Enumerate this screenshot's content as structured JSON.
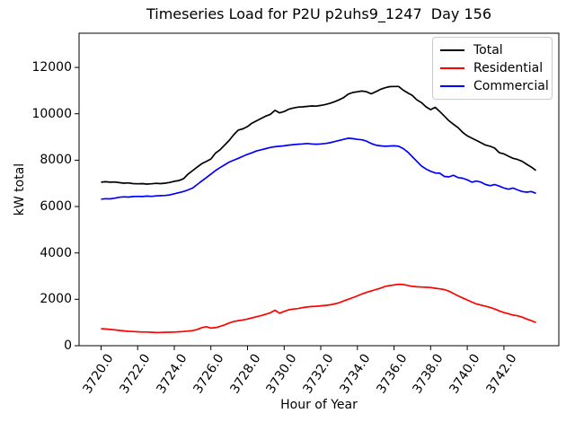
{
  "chart_data": {
    "type": "line",
    "title": "Timeseries Load for P2U p2uhs9_1247  Day 156",
    "xlabel": "Hour of Year",
    "ylabel": "kW total",
    "xlim": [
      3718.8,
      3745.0
    ],
    "ylim": [
      0,
      13475
    ],
    "grid": false,
    "legend_position": "upper right",
    "xticks": [
      3720,
      3722,
      3724,
      3726,
      3728,
      3730,
      3732,
      3734,
      3736,
      3738,
      3740,
      3742
    ],
    "xtick_labels": [
      "3720.0",
      "3722.0",
      "3724.0",
      "3726.0",
      "3728.0",
      "3730.0",
      "3732.0",
      "3734.0",
      "3736.0",
      "3738.0",
      "3740.0",
      "3742.0"
    ],
    "yticks": [
      0,
      2000,
      4000,
      6000,
      8000,
      10000,
      12000
    ],
    "ytick_labels": [
      "0",
      "2000",
      "4000",
      "6000",
      "8000",
      "10000",
      "12000"
    ],
    "x_start": 3720,
    "x_step": 0.25,
    "series": [
      {
        "name": "Total",
        "color": "#000000",
        "values": [
          7050,
          7070,
          7050,
          7060,
          7030,
          7010,
          7020,
          6990,
          6980,
          6990,
          6970,
          6980,
          7000,
          6990,
          7010,
          7040,
          7090,
          7120,
          7200,
          7400,
          7550,
          7700,
          7850,
          7950,
          8050,
          8300,
          8450,
          8650,
          8850,
          9100,
          9300,
          9350,
          9450,
          9600,
          9700,
          9800,
          9900,
          9980,
          10150,
          10040,
          10100,
          10200,
          10250,
          10290,
          10300,
          10320,
          10340,
          10330,
          10360,
          10400,
          10450,
          10520,
          10600,
          10700,
          10850,
          10920,
          10950,
          10980,
          10950,
          10860,
          10950,
          11050,
          11120,
          11170,
          11180,
          11180,
          11020,
          10900,
          10790,
          10600,
          10480,
          10300,
          10180,
          10280,
          10100,
          9900,
          9700,
          9550,
          9400,
          9200,
          9050,
          8950,
          8850,
          8750,
          8650,
          8600,
          8520,
          8320,
          8270,
          8170,
          8080,
          8030,
          7950,
          7820,
          7700,
          7560
        ]
      },
      {
        "name": "Residential",
        "color": "#ff0000",
        "values": [
          730,
          720,
          700,
          680,
          660,
          640,
          620,
          610,
          600,
          590,
          590,
          580,
          570,
          570,
          580,
          580,
          590,
          600,
          610,
          630,
          650,
          700,
          780,
          820,
          760,
          780,
          830,
          900,
          980,
          1040,
          1080,
          1110,
          1150,
          1200,
          1250,
          1300,
          1360,
          1420,
          1530,
          1400,
          1480,
          1550,
          1580,
          1600,
          1640,
          1670,
          1690,
          1700,
          1720,
          1740,
          1760,
          1800,
          1850,
          1930,
          2000,
          2070,
          2150,
          2230,
          2300,
          2360,
          2420,
          2480,
          2550,
          2590,
          2620,
          2650,
          2640,
          2600,
          2560,
          2540,
          2530,
          2520,
          2510,
          2480,
          2450,
          2420,
          2350,
          2250,
          2150,
          2060,
          1970,
          1880,
          1800,
          1750,
          1700,
          1650,
          1580,
          1500,
          1430,
          1380,
          1320,
          1290,
          1230,
          1150,
          1080,
          1000
        ]
      },
      {
        "name": "Commercial",
        "color": "#0000ff",
        "values": [
          6320,
          6340,
          6330,
          6360,
          6400,
          6420,
          6410,
          6430,
          6440,
          6430,
          6450,
          6440,
          6460,
          6470,
          6480,
          6500,
          6550,
          6600,
          6650,
          6720,
          6800,
          6950,
          7100,
          7250,
          7400,
          7550,
          7680,
          7800,
          7920,
          8000,
          8080,
          8170,
          8250,
          8320,
          8400,
          8450,
          8500,
          8550,
          8580,
          8600,
          8620,
          8650,
          8670,
          8690,
          8700,
          8720,
          8700,
          8690,
          8700,
          8720,
          8750,
          8800,
          8850,
          8900,
          8950,
          8930,
          8900,
          8880,
          8820,
          8720,
          8650,
          8620,
          8600,
          8610,
          8620,
          8600,
          8500,
          8350,
          8150,
          7950,
          7750,
          7620,
          7520,
          7450,
          7440,
          7300,
          7280,
          7350,
          7250,
          7220,
          7150,
          7050,
          7100,
          7050,
          6950,
          6900,
          6950,
          6880,
          6800,
          6750,
          6800,
          6720,
          6650,
          6620,
          6650,
          6570
        ]
      }
    ]
  }
}
